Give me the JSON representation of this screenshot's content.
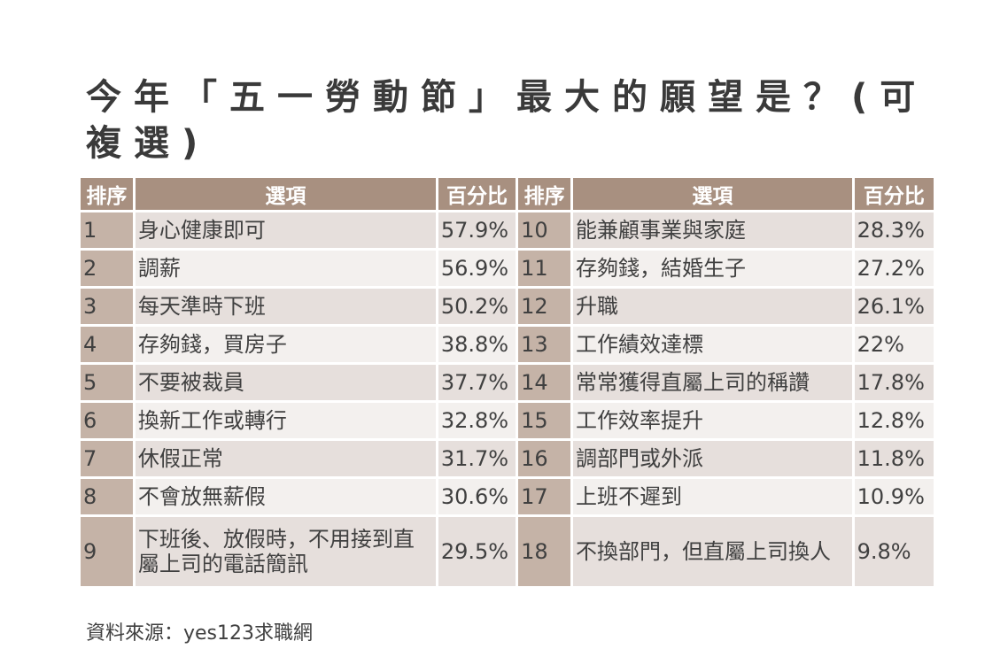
{
  "chart_data": {
    "type": "table",
    "title": "今年「五一勞動節」最大的願望是？(可複選)",
    "columns": [
      "排序",
      "選項",
      "百分比"
    ],
    "rows": [
      {
        "rank": "1",
        "item": "身心健康即可",
        "percent": "57.9%"
      },
      {
        "rank": "2",
        "item": "調薪",
        "percent": "56.9%"
      },
      {
        "rank": "3",
        "item": "每天準時下班",
        "percent": "50.2%"
      },
      {
        "rank": "4",
        "item": "存夠錢，買房子",
        "percent": "38.8%"
      },
      {
        "rank": "5",
        "item": "不要被裁員",
        "percent": "37.7%"
      },
      {
        "rank": "6",
        "item": "換新工作或轉行",
        "percent": "32.8%"
      },
      {
        "rank": "7",
        "item": "休假正常",
        "percent": "31.7%"
      },
      {
        "rank": "8",
        "item": "不會放無薪假",
        "percent": "30.6%"
      },
      {
        "rank": "9",
        "item": "下班後、放假時，不用接到直屬上司的電話簡訊",
        "percent": "29.5%"
      },
      {
        "rank": "10",
        "item": "能兼顧事業與家庭",
        "percent": "28.3%"
      },
      {
        "rank": "11",
        "item": "存夠錢，結婚生子",
        "percent": "27.2%"
      },
      {
        "rank": "12",
        "item": "升職",
        "percent": "26.1%"
      },
      {
        "rank": "13",
        "item": "工作績效達標",
        "percent": "22%"
      },
      {
        "rank": "14",
        "item": "常常獲得直屬上司的稱讚",
        "percent": "17.8%"
      },
      {
        "rank": "15",
        "item": "工作效率提升",
        "percent": "12.8%"
      },
      {
        "rank": "16",
        "item": "調部門或外派",
        "percent": "11.8%"
      },
      {
        "rank": "17",
        "item": "上班不遲到",
        "percent": "10.9%"
      },
      {
        "rank": "18",
        "item": "不換部門，但直屬上司換人",
        "percent": "9.8%"
      }
    ],
    "source": "資料來源：yes123求職網"
  }
}
